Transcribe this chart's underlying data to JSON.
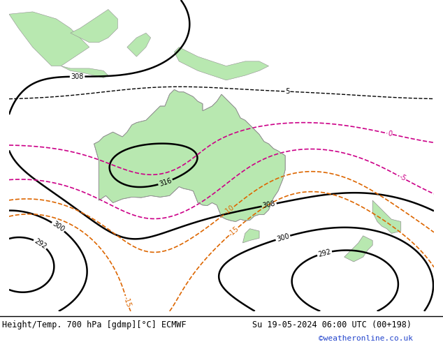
{
  "title_left": "Height/Temp. 700 hPa [gdmp][°C] ECMWF",
  "title_right": "Su 19-05-2024 06:00 UTC (00+198)",
  "credit": "©weatheronline.co.uk",
  "bg_color": "#d8d8e0",
  "land_color": "#b8e8b0",
  "coast_color": "#909090",
  "fig_width": 6.34,
  "fig_height": 4.9,
  "dpi": 100,
  "title_fontsize": 8.5,
  "credit_fontsize": 8,
  "map_extent": [
    95,
    185,
    -58,
    8
  ],
  "geo_levels": [
    268,
    276,
    284,
    292,
    300,
    308,
    316
  ],
  "geo_color": "#000000",
  "geo_lw": 1.8,
  "temp_magenta_levels": [
    -5,
    0
  ],
  "temp_orange_levels": [
    -15,
    -10
  ],
  "temp_black_levels": [
    5
  ],
  "magenta_color": "#cc0088",
  "orange_color": "#dd6600",
  "temp_lw": 1.2
}
